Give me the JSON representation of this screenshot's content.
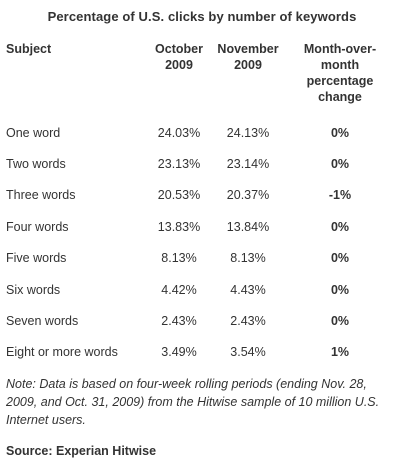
{
  "chart_data": {
    "type": "table",
    "title": "Percentage of U.S. clicks by number of keywords",
    "columns": [
      "Subject",
      "October 2009",
      "November 2009",
      "Month-over-month percentage change"
    ],
    "rows": [
      {
        "subject": "One word",
        "october_2009": "24.03%",
        "november_2009": "24.13%",
        "change": "0%"
      },
      {
        "subject": "Two words",
        "october_2009": "23.13%",
        "november_2009": "23.14%",
        "change": "0%"
      },
      {
        "subject": "Three words",
        "october_2009": "20.53%",
        "november_2009": "20.37%",
        "change": "-1%"
      },
      {
        "subject": "Four words",
        "october_2009": "13.83%",
        "november_2009": "13.84%",
        "change": "0%"
      },
      {
        "subject": "Five words",
        "october_2009": "8.13%",
        "november_2009": "8.13%",
        "change": "0%"
      },
      {
        "subject": "Six words",
        "october_2009": "4.42%",
        "november_2009": "4.43%",
        "change": "0%"
      },
      {
        "subject": "Seven words",
        "october_2009": "2.43%",
        "november_2009": "2.43%",
        "change": "0%"
      },
      {
        "subject": "Eight or more words",
        "october_2009": "3.49%",
        "november_2009": "3.54%",
        "change": "1%"
      }
    ],
    "note": "Note: Data is based on four-week rolling periods (ending Nov. 28, 2009, and Oct. 31, 2009) from the Hitwise sample of 10 million U.S. Internet users.",
    "source": "Source: Experian Hitwise"
  },
  "header_lines": {
    "subject": [
      "Subject"
    ],
    "october": [
      "October",
      "2009"
    ],
    "november": [
      "November",
      "2009"
    ],
    "change": [
      "Month-over-",
      "month",
      "percentage",
      "change"
    ]
  },
  "colors": {
    "text": "#333333",
    "background": "#ffffff"
  }
}
